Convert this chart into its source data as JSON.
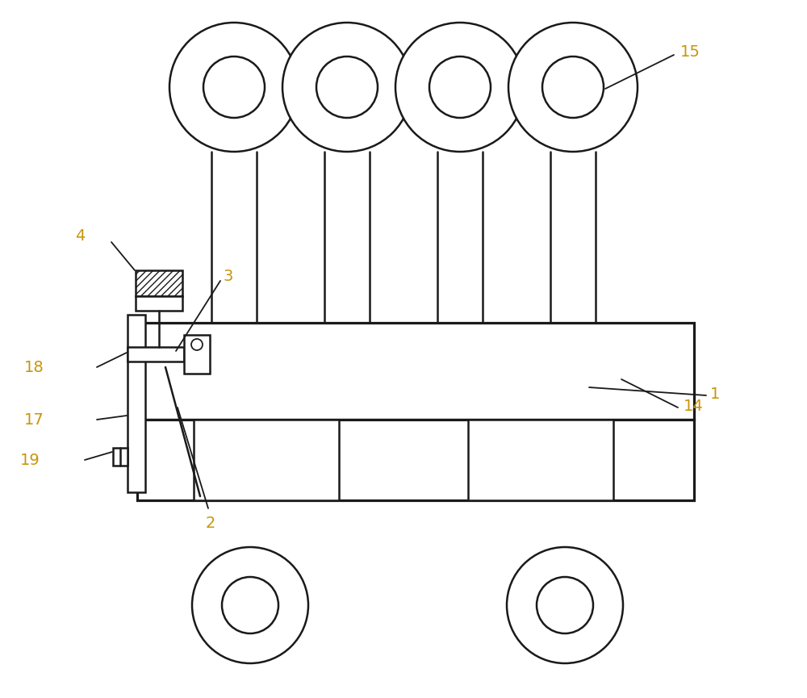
{
  "bg_color": "#ffffff",
  "line_color": "#1a1a1a",
  "label_color": "#c8960a",
  "lw": 1.8,
  "fig_width": 10.0,
  "fig_height": 8.65
}
